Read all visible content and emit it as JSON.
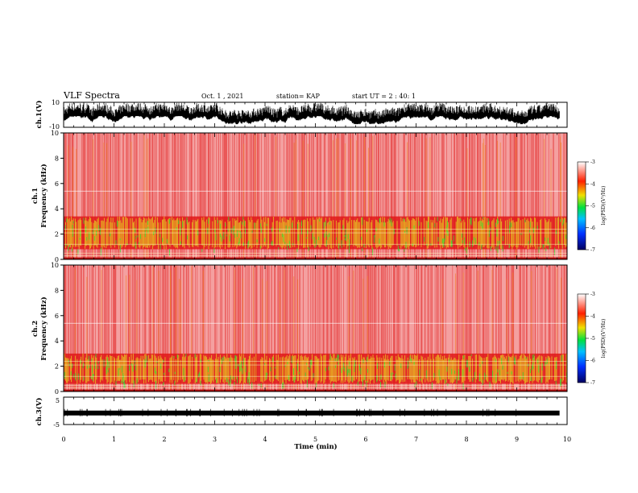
{
  "header": {
    "title": "VLF Spectra",
    "date": "Oct. 1 , 2021",
    "station": "station= KAP",
    "start": "start UT =  2 : 40: 1"
  },
  "chart_data": [
    {
      "type": "line",
      "panel": "ch1-waveform",
      "ylabel": "ch.1(V)",
      "ylim": [
        -10,
        10
      ],
      "yticks": [
        "10",
        "-10"
      ],
      "xlim": [
        0,
        10
      ],
      "data_extent_min": 9.85
    },
    {
      "type": "heatmap",
      "panel": "ch1-spectrogram",
      "ylabel_1": "ch.1",
      "ylabel_2": "Frequency (kHz)",
      "ylim": [
        0,
        10
      ],
      "yticks": [
        "0",
        "2",
        "4",
        "6",
        "8",
        "10"
      ],
      "xlim": [
        0,
        10
      ],
      "dominant_band_khz": [
        0.8,
        3.4
      ],
      "colorbar": {
        "label": "log(PSD)(V²/Hz)",
        "range": [
          -7,
          -3
        ],
        "ticks": [
          "-3",
          "-4",
          "-5",
          "-6",
          "-7"
        ]
      }
    },
    {
      "type": "heatmap",
      "panel": "ch2-spectrogram",
      "ylabel_1": "ch.2",
      "ylabel_2": "Frequency (kHz)",
      "ylim": [
        0,
        10
      ],
      "yticks": [
        "0",
        "2",
        "4",
        "6",
        "8",
        "10"
      ],
      "xlim": [
        0,
        10
      ],
      "dominant_band_khz": [
        0.6,
        3.0
      ],
      "colorbar": {
        "label": "log(PSD)(V²/Hz)",
        "range": [
          -7,
          -3
        ],
        "ticks": [
          "-3",
          "-4",
          "-5",
          "-6",
          "-7"
        ]
      }
    },
    {
      "type": "line",
      "panel": "ch3-waveform",
      "ylabel": "ch.3(V)",
      "ylim": [
        -5,
        5
      ],
      "yticks": [
        "5",
        "-5"
      ],
      "xlim": [
        0,
        10
      ],
      "xlabel": "Time (min)",
      "xticks": [
        "0",
        "1",
        "2",
        "3",
        "4",
        "5",
        "6",
        "7",
        "8",
        "9",
        "10"
      ],
      "level_v": -0.8
    }
  ],
  "colors": {
    "background": "#ffffff",
    "axis": "#000000",
    "spectrogram_base": "#f4a0a0",
    "spectrogram_red": "#e01818",
    "spectrogram_orange": "#f08020",
    "spectrogram_yellow": "#e8e020",
    "spectrogram_green": "#30e030",
    "colorbar_stops": [
      "#000060",
      "#0030ff",
      "#00c0ff",
      "#00e040",
      "#f0e000",
      "#ff2000",
      "#ffffff"
    ]
  }
}
